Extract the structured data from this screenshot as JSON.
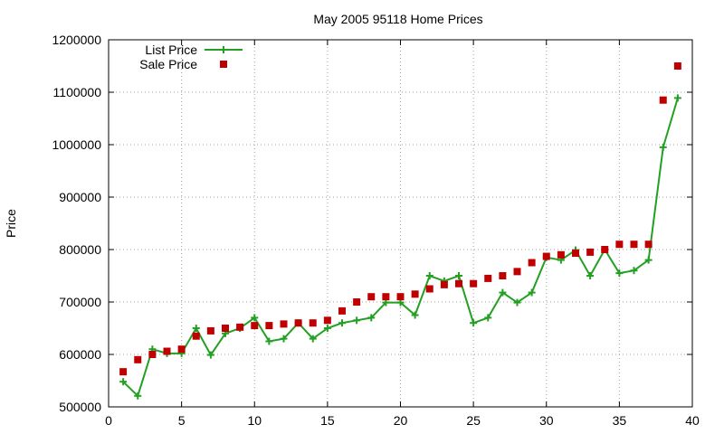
{
  "chart_data": {
    "type": "line",
    "title": "May 2005 95118 Home Prices",
    "xlabel": "",
    "ylabel": "Price",
    "xlim": [
      0,
      40
    ],
    "ylim": [
      500000,
      1200000
    ],
    "xticks": [
      0,
      5,
      10,
      15,
      20,
      25,
      30,
      35,
      40
    ],
    "yticks": [
      500000,
      600000,
      700000,
      800000,
      900000,
      1000000,
      1100000,
      1200000
    ],
    "grid": true,
    "legend_position": "top-left",
    "series": [
      {
        "name": "List Price",
        "style": "line-plus",
        "color": "#22a022",
        "x": [
          1,
          2,
          3,
          4,
          5,
          6,
          7,
          8,
          9,
          10,
          11,
          12,
          13,
          14,
          15,
          16,
          17,
          18,
          19,
          20,
          21,
          22,
          23,
          24,
          25,
          26,
          27,
          28,
          29,
          30,
          31,
          32,
          33,
          34,
          35,
          36,
          37,
          38,
          39
        ],
        "y": [
          548000,
          521000,
          610000,
          602000,
          602000,
          650000,
          599000,
          640000,
          650000,
          670000,
          625000,
          630000,
          660000,
          630000,
          650000,
          660000,
          665000,
          670000,
          699000,
          699000,
          675000,
          750000,
          740000,
          750000,
          660000,
          670000,
          718000,
          699000,
          718000,
          785000,
          780000,
          799000,
          750000,
          800000,
          755000,
          760000,
          780000,
          995000,
          1089000
        ]
      },
      {
        "name": "Sale Price",
        "style": "square-points",
        "color": "#c00000",
        "x": [
          1,
          2,
          3,
          4,
          5,
          6,
          7,
          8,
          9,
          10,
          11,
          12,
          13,
          14,
          15,
          16,
          17,
          18,
          19,
          20,
          21,
          22,
          23,
          24,
          25,
          26,
          27,
          28,
          29,
          30,
          31,
          32,
          33,
          34,
          35,
          36,
          37,
          38,
          39
        ],
        "y": [
          567000,
          590000,
          600000,
          606000,
          610000,
          635000,
          645000,
          650000,
          652000,
          655000,
          655000,
          658000,
          660000,
          660000,
          665000,
          683000,
          700000,
          710000,
          710000,
          710000,
          715000,
          725000,
          733000,
          735000,
          735000,
          745000,
          750000,
          758000,
          775000,
          787000,
          790000,
          793000,
          795000,
          800000,
          810000,
          810000,
          810000,
          1085000,
          1150000
        ]
      }
    ]
  }
}
